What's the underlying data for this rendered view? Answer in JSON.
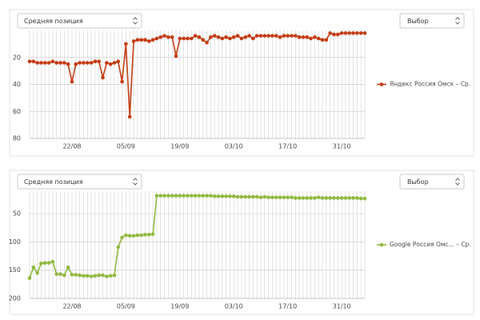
{
  "controls": [
    {
      "metric": "Средняя позиция",
      "select": "Выбор"
    },
    {
      "metric": "Средняя позиция",
      "select": "Выбор"
    }
  ],
  "chart_data": [
    {
      "type": "line",
      "reverse_y": true,
      "grid": true,
      "legend": "right",
      "categories": [
        null,
        null,
        null,
        null,
        null,
        null,
        null,
        null,
        null,
        null,
        null,
        "22/08",
        null,
        null,
        null,
        null,
        null,
        null,
        null,
        null,
        null,
        null,
        null,
        null,
        null,
        "05/09",
        null,
        null,
        null,
        null,
        null,
        null,
        null,
        null,
        null,
        null,
        null,
        null,
        null,
        "19/09",
        null,
        null,
        null,
        null,
        null,
        null,
        null,
        null,
        null,
        null,
        null,
        null,
        null,
        "03/10",
        null,
        null,
        null,
        null,
        null,
        null,
        null,
        null,
        null,
        null,
        null,
        null,
        null,
        "17/10",
        null,
        null,
        null,
        null,
        null,
        null,
        null,
        null,
        null,
        null,
        null,
        null,
        null,
        "31/10",
        null,
        null,
        null,
        null,
        null,
        null
      ],
      "ylim": [
        0,
        80
      ],
      "yticks": [
        20,
        40,
        60,
        80
      ],
      "series": [
        {
          "name": "Яндекс Россия Омск – Ср.",
          "color": "#c23a12",
          "values": [
            23,
            23,
            24,
            24,
            24,
            24,
            23,
            24,
            24,
            24,
            25,
            38,
            25,
            24,
            24,
            24,
            24,
            23,
            23,
            35,
            24,
            25,
            24,
            23,
            38,
            10,
            64,
            8,
            7,
            7,
            7,
            8,
            7,
            6,
            5,
            4,
            5,
            5,
            19,
            6,
            6,
            6,
            6,
            4,
            5,
            7,
            9,
            5,
            4,
            5,
            6,
            5,
            6,
            5,
            4,
            6,
            5,
            4,
            6,
            4,
            4,
            4,
            4,
            4,
            4,
            5,
            4,
            4,
            4,
            4,
            5,
            5,
            5,
            6,
            5,
            6,
            7,
            7,
            2,
            3,
            3,
            2,
            2,
            2,
            2,
            2,
            2,
            2
          ]
        }
      ]
    },
    {
      "type": "line",
      "reverse_y": true,
      "grid": true,
      "legend": "right",
      "categories": [
        null,
        null,
        null,
        null,
        null,
        null,
        null,
        null,
        null,
        null,
        null,
        "22/08",
        null,
        null,
        null,
        null,
        null,
        null,
        null,
        null,
        null,
        null,
        null,
        null,
        null,
        "05/09",
        null,
        null,
        null,
        null,
        null,
        null,
        null,
        null,
        null,
        null,
        null,
        null,
        null,
        "19/09",
        null,
        null,
        null,
        null,
        null,
        null,
        null,
        null,
        null,
        null,
        null,
        null,
        null,
        "03/10",
        null,
        null,
        null,
        null,
        null,
        null,
        null,
        null,
        null,
        null,
        null,
        null,
        null,
        "17/10",
        null,
        null,
        null,
        null,
        null,
        null,
        null,
        null,
        null,
        null,
        null,
        null,
        null,
        "31/10",
        null,
        null,
        null,
        null,
        null,
        null
      ],
      "ylim": [
        10,
        200
      ],
      "yticks": [
        50,
        100,
        150,
        200
      ],
      "series": [
        {
          "name": "Google Россия Омс... – Ср.",
          "color": "#8fb83e",
          "values": [
            164,
            145,
            155,
            138,
            137,
            137,
            135,
            157,
            157,
            159,
            145,
            158,
            158,
            159,
            160,
            160,
            161,
            160,
            159,
            159,
            161,
            160,
            159,
            109,
            92,
            88,
            89,
            89,
            88,
            88,
            87,
            87,
            86,
            18,
            18,
            18,
            18,
            18,
            18,
            18,
            18,
            18,
            18,
            18,
            18,
            18,
            18,
            18,
            19,
            19,
            19,
            19,
            19,
            19,
            20,
            20,
            20,
            20,
            20,
            20,
            21,
            20,
            21,
            21,
            21,
            21,
            21,
            21,
            21,
            22,
            22,
            22,
            22,
            22,
            22,
            21,
            22,
            22,
            22,
            22,
            22,
            22,
            22,
            22,
            22,
            22,
            23,
            23
          ]
        }
      ]
    }
  ]
}
